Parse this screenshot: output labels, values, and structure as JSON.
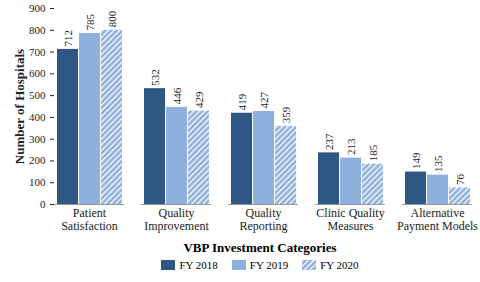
{
  "chart_data": {
    "type": "bar",
    "categories": [
      "Patient Satisfaction",
      "Quality Improvement",
      "Quality Reporting",
      "Clinic Quality Measures",
      "Alternative Payment Models"
    ],
    "series": [
      {
        "name": "FY 2018",
        "color": "#2f5783",
        "values": [
          712,
          532,
          419,
          237,
          149
        ]
      },
      {
        "name": "FY 2019",
        "color": "#8eb0dd",
        "values": [
          785,
          446,
          427,
          213,
          135
        ]
      },
      {
        "name": "FY 2020",
        "color": "#8eb0dd",
        "line_style": "hatched",
        "values": [
          800,
          429,
          359,
          185,
          76
        ]
      }
    ],
    "xlabel": "VBP Investment Categories",
    "ylabel": "Number of Hospitals",
    "ylim": [
      0,
      900
    ],
    "yticks": [
      0,
      100,
      200,
      300,
      400,
      500,
      600,
      700,
      800,
      900
    ],
    "data_labels": true,
    "legend": "bottom",
    "grid": false
  }
}
